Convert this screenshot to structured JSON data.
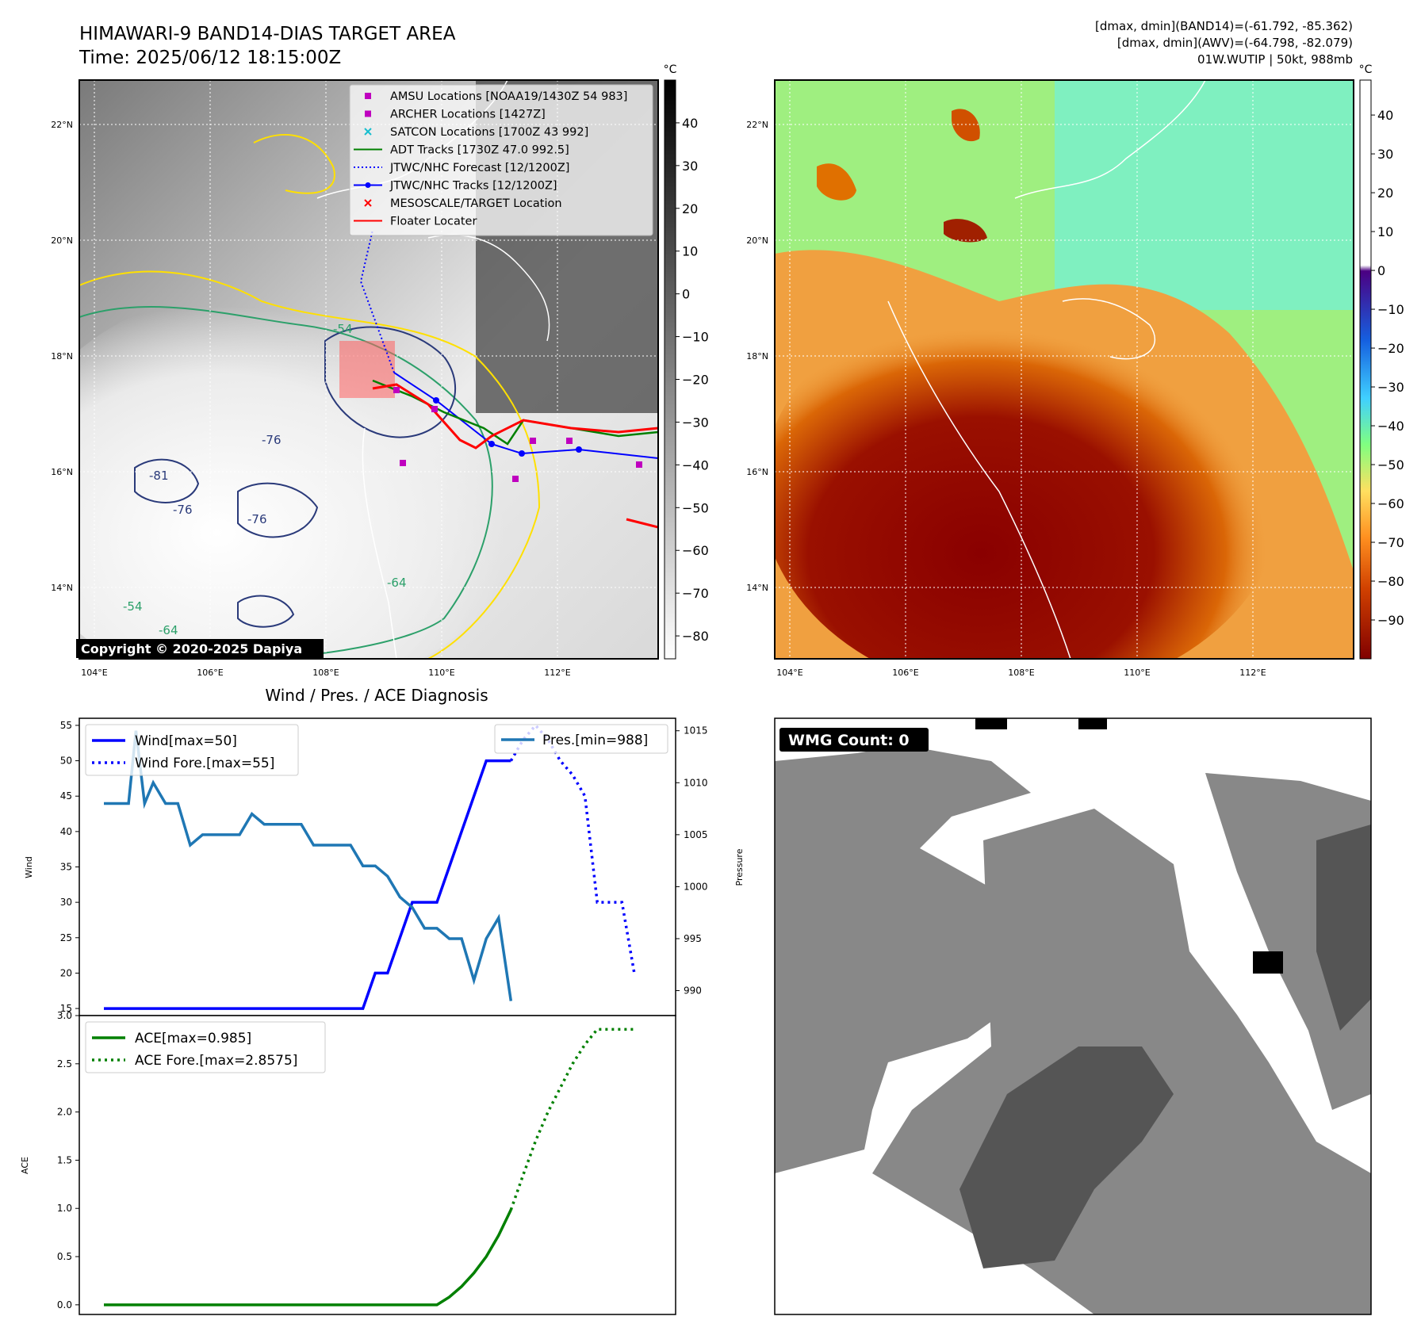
{
  "header": {
    "title_line1": "HIMAWARI-9 BAND14-DIAS TARGET AREA",
    "title_line2": "Time: 2025/06/12 18:15:00Z",
    "info_line1": "[dmax, dmin](BAND14)=(-61.792, -85.362)",
    "info_line2": "[dmax, dmin](AWV)=(-64.798, -82.079)",
    "info_line3": "01W.WUTIP | 50kt, 988mb"
  },
  "map_left": {
    "lon_labels": [
      "104°E",
      "106°E",
      "108°E",
      "110°E",
      "112°E"
    ],
    "lat_labels": [
      "22°N",
      "20°N",
      "18°N",
      "16°N",
      "14°N"
    ],
    "colorbar_unit": "°C",
    "colorbar_ticks": [
      "40",
      "30",
      "20",
      "10",
      "0",
      "−10",
      "−20",
      "−30",
      "−40",
      "−50",
      "−60",
      "−70",
      "−80"
    ],
    "copyright": "Copyright © 2020-2025 Dapiya",
    "contour_labels": [
      "-76",
      "-81",
      "-76",
      "-76",
      "-54",
      "-64",
      "-64",
      "-54"
    ],
    "legend": [
      {
        "label": "AMSU Locations [NOAA19/1430Z 54 983]",
        "color": "#bf00bf",
        "marker": "square"
      },
      {
        "label": "ARCHER Locations [1427Z]",
        "color": "#bf00bf",
        "marker": "square"
      },
      {
        "label": "SATCON Locations [1700Z 43 992]",
        "color": "#17becf",
        "marker": "x"
      },
      {
        "label": "ADT Tracks [1730Z 47.0 992.5]",
        "color": "#008000",
        "marker": "line"
      },
      {
        "label": "JTWC/NHC Forecast [12/1200Z]",
        "color": "#0000ff",
        "marker": "dotted"
      },
      {
        "label": "JTWC/NHC Tracks [12/1200Z]",
        "color": "#0000ff",
        "marker": "line-dot"
      },
      {
        "label": "MESOSCALE/TARGET Location",
        "color": "#ff0000",
        "marker": "x"
      },
      {
        "label": "Floater Locater",
        "color": "#ff0000",
        "marker": "line"
      }
    ]
  },
  "map_right": {
    "lon_labels": [
      "104°E",
      "106°E",
      "108°E",
      "110°E",
      "112°E"
    ],
    "lat_labels": [
      "22°N",
      "20°N",
      "18°N",
      "16°N",
      "14°N"
    ],
    "colorbar_unit": "°C",
    "colorbar_ticks": [
      "40",
      "30",
      "20",
      "10",
      "0",
      "−10",
      "−20",
      "−30",
      "−40",
      "−50",
      "−60",
      "−70",
      "−80",
      "−90"
    ]
  },
  "wmg": {
    "label": "WMG Count: 0"
  },
  "chart_data": [
    {
      "type": "line",
      "title": "Wind / Pres. / ACE Diagnosis",
      "ylabel": "Wind",
      "ylim": [
        14,
        56
      ],
      "yticks": [
        15,
        20,
        25,
        30,
        35,
        40,
        45,
        50,
        55
      ],
      "xlim": [
        0,
        45
      ],
      "series": [
        {
          "name": "Wind[max=50]",
          "color": "#0000ff",
          "style": "solid",
          "x": [
            0,
            1,
            2,
            3,
            4,
            5,
            6,
            7,
            8,
            9,
            10,
            11,
            12,
            13,
            14,
            15,
            16,
            17,
            18,
            19,
            20,
            21,
            22,
            23,
            24,
            25,
            26,
            27,
            28,
            29,
            30,
            31,
            32,
            33
          ],
          "values": [
            15,
            15,
            15,
            15,
            15,
            15,
            15,
            15,
            15,
            15,
            15,
            15,
            15,
            15,
            15,
            15,
            15,
            15,
            15,
            15,
            15,
            15,
            20,
            20,
            25,
            30,
            30,
            30,
            35,
            40,
            45,
            50,
            50,
            50
          ]
        },
        {
          "name": "Wind Fore.[max=55]",
          "color": "#0000ff",
          "style": "dotted",
          "x": [
            33,
            34,
            35,
            36,
            37,
            38,
            39,
            40,
            41,
            42,
            43
          ],
          "values": [
            50,
            53,
            55,
            53,
            50,
            48,
            45,
            30,
            30,
            30,
            20
          ]
        }
      ],
      "secondary_axis": {
        "ylabel": "Pressure",
        "ylim": [
          987.6,
          1016.2
        ],
        "yticks": [
          990,
          995,
          1000,
          1005,
          1010,
          1015
        ],
        "series": [
          {
            "name": "Pres.[min=988]",
            "color": "#1f77b4",
            "style": "solid",
            "x": [
              0,
              1,
              2,
              2.6,
              3.3,
              4,
              5,
              6,
              7,
              8,
              9,
              10,
              11,
              12,
              13,
              14,
              15,
              16,
              17,
              18,
              19,
              20,
              21,
              22,
              23,
              24,
              25,
              26,
              27,
              28,
              29,
              30,
              31,
              32,
              33
            ],
            "values": [
              1008,
              1008,
              1008,
              1015,
              1008,
              1010,
              1008,
              1008,
              1004,
              1005,
              1005,
              1005,
              1005,
              1007,
              1006,
              1006,
              1006,
              1006,
              1004,
              1004,
              1004,
              1004,
              1002,
              1002,
              1001,
              999,
              998,
              996,
              996,
              995,
              995,
              991,
              995,
              997,
              989
            ]
          }
        ]
      }
    },
    {
      "type": "line",
      "ylabel": "ACE",
      "ylim": [
        -0.1,
        3.0
      ],
      "yticks": [
        0.0,
        0.5,
        1.0,
        1.5,
        2.0,
        2.5,
        3.0
      ],
      "xlim": [
        0,
        45
      ],
      "series": [
        {
          "name": "ACE[max=0.985]",
          "color": "#008000",
          "style": "solid",
          "x": [
            0,
            5,
            10,
            15,
            20,
            25,
            27,
            28,
            29,
            30,
            31,
            32,
            33
          ],
          "values": [
            0,
            0,
            0,
            0,
            0,
            0,
            0,
            0.08,
            0.19,
            0.33,
            0.5,
            0.72,
            0.985
          ]
        },
        {
          "name": "ACE Fore.[max=2.8575]",
          "color": "#008000",
          "style": "dotted",
          "x": [
            33,
            34,
            35,
            36,
            37,
            38,
            39,
            40,
            41,
            42,
            43
          ],
          "values": [
            0.985,
            1.35,
            1.7,
            2.0,
            2.25,
            2.5,
            2.7,
            2.8575,
            2.8575,
            2.8575,
            2.8575
          ]
        }
      ]
    }
  ]
}
